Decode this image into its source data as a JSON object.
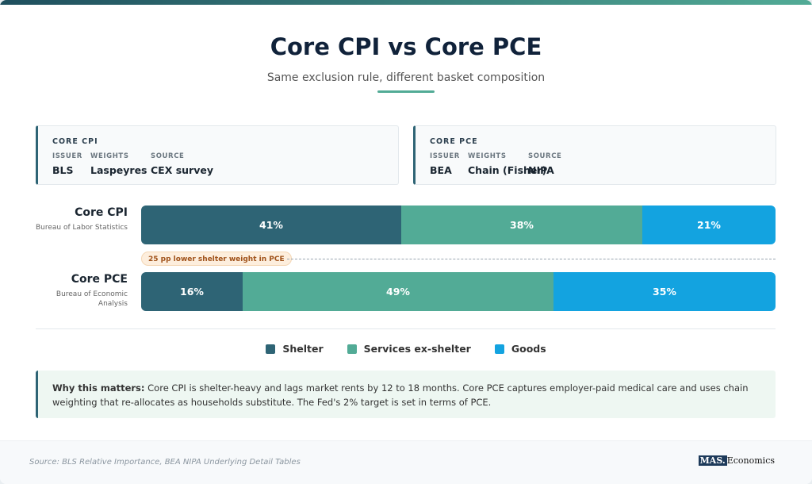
{
  "title": "Core CPI vs Core PCE",
  "subtitle": "Same exclusion rule, different basket composition",
  "cards": [
    {
      "heading": "CORE CPI",
      "fields": [
        {
          "label": "ISSUER",
          "value": "BLS"
        },
        {
          "label": "WEIGHTS",
          "value": "Laspeyres"
        },
        {
          "label": "SOURCE",
          "value": "CEX survey"
        }
      ]
    },
    {
      "heading": "CORE PCE",
      "fields": [
        {
          "label": "ISSUER",
          "value": "BEA"
        },
        {
          "label": "WEIGHTS",
          "value": "Chain (Fisher)"
        },
        {
          "label": "SOURCE",
          "value": "NIPA"
        }
      ]
    }
  ],
  "chart_data": {
    "type": "stacked-bar",
    "categories": [
      "Core CPI",
      "Core PCE"
    ],
    "category_subtitles": [
      "Bureau of Labor Statistics",
      "Bureau of Economic Analysis"
    ],
    "series": [
      {
        "name": "Shelter",
        "color": "#2e6475",
        "values": [
          41,
          16
        ],
        "value_labels": [
          "41%",
          "16%"
        ]
      },
      {
        "name": "Services ex-shelter",
        "color": "#52ab96",
        "values": [
          38,
          49
        ],
        "value_labels": [
          "38%",
          "49%"
        ]
      },
      {
        "name": "Goods",
        "color": "#13a3e0",
        "values": [
          21,
          35
        ],
        "value_labels": [
          "21%",
          "35%"
        ]
      }
    ],
    "xlim": [
      0,
      100
    ],
    "annotation": "25 pp lower shelter weight in PCE"
  },
  "note": {
    "label": "Why this matters:",
    "text": "Core CPI is shelter-heavy and lags market rents by 12 to 18 months. Core PCE captures employer-paid medical care and uses chain weighting that re-allocates as households substitute. The Fed's 2% target is set in terms of PCE."
  },
  "footer": {
    "source": "Source: BLS Relative Importance, BEA NIPA Underlying Detail Tables",
    "brand": "MAS.",
    "brand_suffix": "Economics"
  }
}
